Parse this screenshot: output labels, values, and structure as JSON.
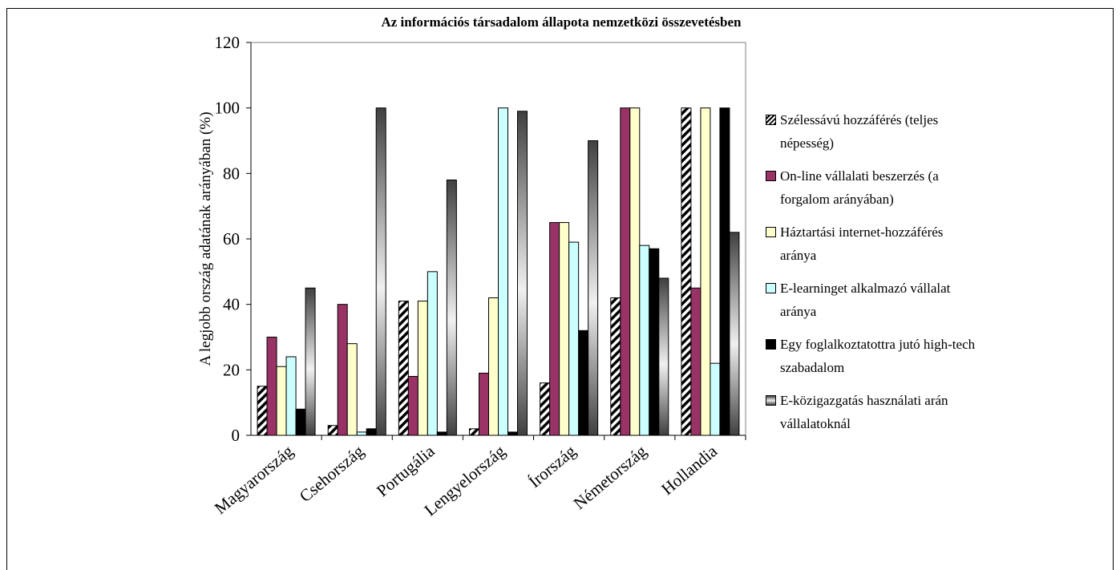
{
  "chart_data": {
    "type": "bar",
    "title": "Az információs társadalom állapota nemzetközi összevetésben",
    "ylabel": "A legjobb ország adatának arányában (%)",
    "categories": [
      "Magyarország",
      "Csehország",
      "Portugália",
      "Lengyelország",
      "Írország",
      "Németország",
      "Hollandia"
    ],
    "series": [
      {
        "name": "Szélessávú hozzáférés (teljes népesség)",
        "color": "#000000",
        "pattern": "hatch",
        "values": [
          15,
          3,
          41,
          2,
          16,
          42,
          100
        ]
      },
      {
        "name": "On-line vállalati beszerzés (a forgalom arányában)",
        "color": "#993366",
        "values": [
          30,
          40,
          18,
          19,
          65,
          100,
          45
        ]
      },
      {
        "name": "Háztartási internet-hozzáférés aránya",
        "color": "#ffffcc",
        "values": [
          21,
          28,
          41,
          42,
          65,
          100,
          100
        ]
      },
      {
        "name": "E-learninget alkalmazó vállalat aránya",
        "color": "#ccffff",
        "values": [
          24,
          1,
          50,
          100,
          59,
          58,
          22
        ]
      },
      {
        "name": "Egy foglalkoztatottra jutó high-tech szabadalom",
        "color": "#000000",
        "values": [
          8,
          2,
          1,
          1,
          32,
          57,
          100
        ]
      },
      {
        "name": "E-közigazgatás használati arán vállalatoknál",
        "color": "#404040",
        "pattern": "gradient",
        "values": [
          45,
          100,
          78,
          99,
          90,
          48,
          62
        ]
      }
    ],
    "ylim": [
      0,
      120
    ],
    "yticks": [
      0,
      20,
      40,
      60,
      80,
      100,
      120
    ],
    "grid": false,
    "legend": "right"
  }
}
